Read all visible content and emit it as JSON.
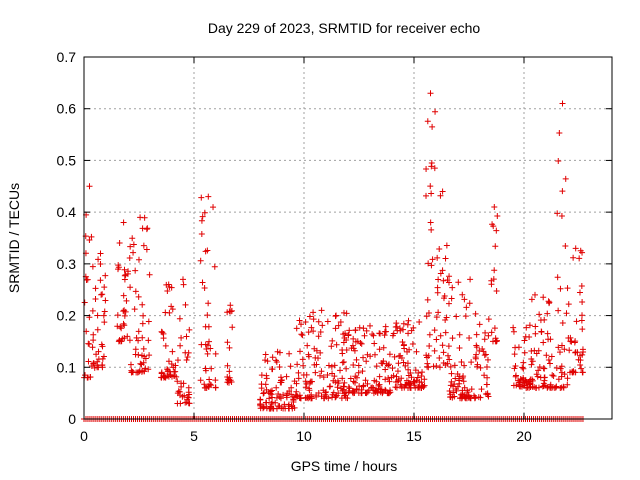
{
  "chart_data": {
    "type": "scatter",
    "title": "Day 229 of 2023, SRMTID for receiver echo",
    "xlabel": "GPS time / hours",
    "ylabel": "SRMTID / TECUs",
    "xlim": [
      0,
      24
    ],
    "ylim": [
      0,
      0.7
    ],
    "xticks": [
      0,
      5,
      10,
      15,
      20
    ],
    "yticks": [
      0,
      0.1,
      0.2,
      0.3,
      0.4,
      0.5,
      0.6,
      0.7
    ],
    "xtick_labels": [
      "0",
      "5",
      "10",
      "15",
      "20"
    ],
    "ytick_labels": [
      "0",
      "0.1",
      "0.2",
      "0.3",
      "0.4",
      "0.5",
      "0.6",
      "0.7"
    ],
    "grid": true,
    "marker": "+",
    "color": "#e00000",
    "series": [
      {
        "name": "SRMTID",
        "clusters": [
          {
            "t": [
              0.0,
              0.5
            ],
            "lo": 0.08,
            "hi": 0.45
          },
          {
            "t": [
              0.5,
              1.0
            ],
            "lo": 0.1,
            "hi": 0.32
          },
          {
            "t": [
              1.5,
              2.1
            ],
            "lo": 0.15,
            "hi": 0.38
          },
          {
            "t": [
              2.1,
              3.0
            ],
            "lo": 0.09,
            "hi": 0.39
          },
          {
            "t": [
              3.5,
              4.2
            ],
            "lo": 0.08,
            "hi": 0.26
          },
          {
            "t": [
              4.2,
              4.8
            ],
            "lo": 0.03,
            "hi": 0.27
          },
          {
            "t": [
              5.3,
              6.0
            ],
            "lo": 0.06,
            "hi": 0.43
          },
          {
            "t": [
              6.5,
              6.8
            ],
            "lo": 0.07,
            "hi": 0.22
          },
          {
            "t": [
              8.0,
              9.6
            ],
            "lo": 0.02,
            "hi": 0.13
          },
          {
            "t": [
              9.6,
              12.0
            ],
            "lo": 0.04,
            "hi": 0.21
          },
          {
            "t": [
              12.0,
              14.0
            ],
            "lo": 0.05,
            "hi": 0.18
          },
          {
            "t": [
              14.0,
              15.5
            ],
            "lo": 0.06,
            "hi": 0.19
          },
          {
            "t": [
              15.5,
              16.0
            ],
            "lo": 0.1,
            "hi": 0.63
          },
          {
            "t": [
              16.0,
              16.6
            ],
            "lo": 0.1,
            "hi": 0.44
          },
          {
            "t": [
              16.6,
              18.5
            ],
            "lo": 0.04,
            "hi": 0.27
          },
          {
            "t": [
              18.5,
              18.8
            ],
            "lo": 0.15,
            "hi": 0.41
          },
          {
            "t": [
              19.5,
              21.5
            ],
            "lo": 0.06,
            "hi": 0.24
          },
          {
            "t": [
              21.5,
              22.0
            ],
            "lo": 0.06,
            "hi": 0.61
          },
          {
            "t": [
              22.0,
              22.7
            ],
            "lo": 0.09,
            "hi": 0.33
          }
        ],
        "zero_band": {
          "t": [
            0,
            22.7
          ],
          "value": 0
        }
      }
    ]
  }
}
